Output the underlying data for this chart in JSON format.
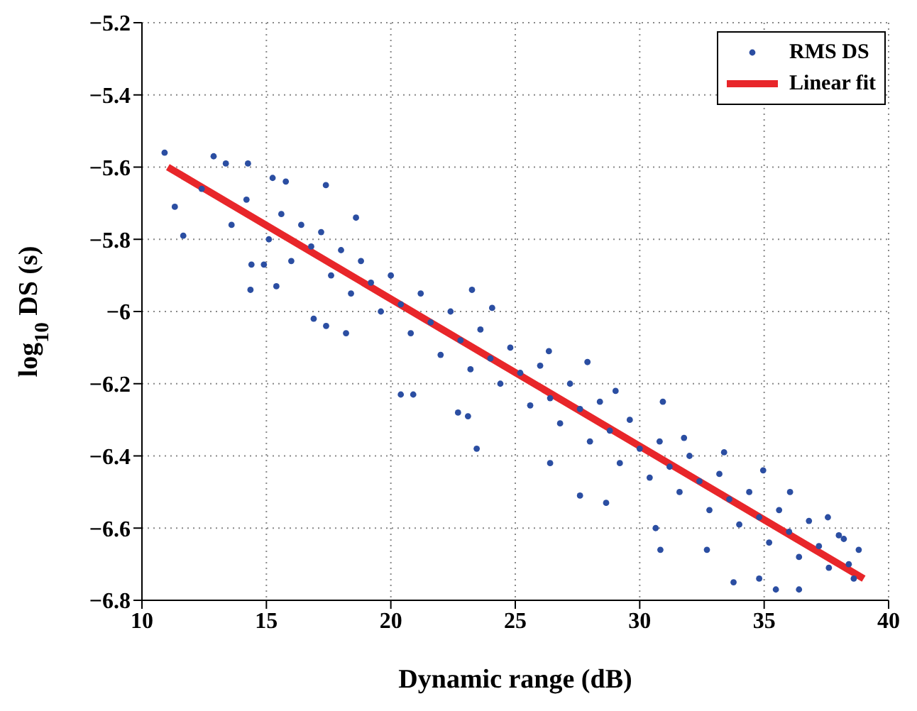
{
  "chart_data": {
    "type": "scatter",
    "xlabel": "Dynamic range (dB)",
    "ylabel": "log$_{10}$ DS (s)",
    "xlim": [
      10,
      40
    ],
    "xticks": [
      10,
      15,
      20,
      25,
      30,
      35,
      40
    ],
    "ylim": [
      -6.8,
      -5.2
    ],
    "yticks": [
      -6.8,
      -6.6,
      -6.4,
      -6.2,
      -6,
      -5.8,
      -5.6,
      -5.4,
      -5.2
    ],
    "grid": true,
    "legend": "top right",
    "series": [
      {
        "name": "RMS DS",
        "color": "#2b4ea2",
        "marker": "circle",
        "x": [
          10.91,
          12.88,
          13.37,
          14.26,
          11.32,
          11.66,
          14.36,
          14.4,
          14.9,
          17.39,
          15.25,
          15.78,
          15.4,
          16.9,
          17.4,
          18.2,
          20.4,
          20.9,
          22.7,
          23.1,
          18.6,
          23.26,
          30.93,
          23.45,
          27.6,
          30.83,
          33.77,
          35.47,
          36.4,
          38.6,
          38.2,
          37.56,
          36.04,
          34.96,
          33.39,
          31.78,
          29.03,
          27.9,
          26.35,
          24.07,
          26.4,
          28.65,
          30.64,
          32.7,
          34.8,
          12.4,
          13.6,
          14.2,
          15.1,
          15.6,
          16.0,
          16.4,
          16.8,
          17.2,
          17.6,
          18.0,
          18.4,
          18.8,
          19.2,
          19.6,
          20.0,
          20.4,
          20.8,
          21.2,
          21.6,
          22.0,
          22.4,
          22.8,
          23.2,
          23.6,
          24.0,
          24.4,
          24.8,
          25.2,
          25.6,
          26.0,
          26.4,
          26.8,
          27.2,
          27.6,
          28.0,
          28.4,
          28.8,
          29.2,
          29.6,
          30.0,
          30.4,
          30.8,
          31.2,
          31.6,
          32.0,
          32.4,
          32.8,
          33.2,
          33.6,
          34.0,
          34.4,
          34.8,
          35.2,
          35.6,
          36.0,
          36.4,
          36.8,
          37.2,
          37.6,
          38.0,
          38.4,
          38.8
        ],
        "values": [
          -5.56,
          -5.57,
          -5.59,
          -5.59,
          -5.71,
          -5.79,
          -5.94,
          -5.87,
          -5.87,
          -5.65,
          -5.63,
          -5.64,
          -5.93,
          -6.02,
          -6.04,
          -6.06,
          -6.23,
          -6.23,
          -6.28,
          -6.29,
          -5.74,
          -5.94,
          -6.25,
          -6.38,
          -6.51,
          -6.66,
          -6.75,
          -6.77,
          -6.77,
          -6.74,
          -6.63,
          -6.57,
          -6.5,
          -6.44,
          -6.39,
          -6.35,
          -6.22,
          -6.14,
          -6.11,
          -5.99,
          -6.42,
          -6.53,
          -6.6,
          -6.66,
          -6.74,
          -5.66,
          -5.76,
          -5.69,
          -5.8,
          -5.73,
          -5.86,
          -5.76,
          -5.82,
          -5.78,
          -5.9,
          -5.83,
          -5.95,
          -5.86,
          -5.92,
          -6.0,
          -5.9,
          -5.98,
          -6.06,
          -5.95,
          -6.03,
          -6.12,
          -6.0,
          -6.08,
          -6.16,
          -6.05,
          -6.13,
          -6.2,
          -6.1,
          -6.17,
          -6.26,
          -6.15,
          -6.24,
          -6.31,
          -6.2,
          -6.27,
          -6.36,
          -6.25,
          -6.33,
          -6.42,
          -6.3,
          -6.38,
          -6.46,
          -6.36,
          -6.43,
          -6.5,
          -6.4,
          -6.47,
          -6.55,
          -6.45,
          -6.52,
          -6.59,
          -6.5,
          -6.57,
          -6.64,
          -6.55,
          -6.61,
          -6.68,
          -6.58,
          -6.65,
          -6.71,
          -6.62,
          -6.7,
          -6.66
        ]
      },
      {
        "name": "Linear fit",
        "type": "line",
        "color": "#e8262a",
        "line_style": "solid",
        "x": [
          11.04,
          39.0
        ],
        "values": [
          -5.6,
          -6.74
        ]
      }
    ]
  }
}
